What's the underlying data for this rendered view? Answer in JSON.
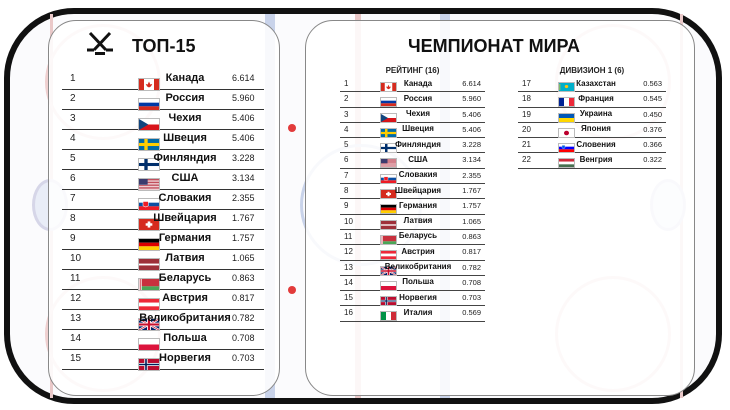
{
  "left": {
    "title": "ТОП-15",
    "rows": [
      {
        "rank": "1",
        "flag": "ca",
        "country": "Канада",
        "score": "6.614"
      },
      {
        "rank": "2",
        "flag": "ru",
        "country": "Россия",
        "score": "5.960"
      },
      {
        "rank": "3",
        "flag": "cz",
        "country": "Чехия",
        "score": "5.406"
      },
      {
        "rank": "4",
        "flag": "se",
        "country": "Швеция",
        "score": "5.406"
      },
      {
        "rank": "5",
        "flag": "fi",
        "country": "Финляндия",
        "score": "3.228"
      },
      {
        "rank": "6",
        "flag": "us",
        "country": "США",
        "score": "3.134"
      },
      {
        "rank": "7",
        "flag": "sk",
        "country": "Словакия",
        "score": "2.355"
      },
      {
        "rank": "8",
        "flag": "ch",
        "country": "Швейцария",
        "score": "1.767"
      },
      {
        "rank": "9",
        "flag": "de",
        "country": "Германия",
        "score": "1.757"
      },
      {
        "rank": "10",
        "flag": "lv",
        "country": "Латвия",
        "score": "1.065"
      },
      {
        "rank": "11",
        "flag": "by",
        "country": "Беларусь",
        "score": "0.863"
      },
      {
        "rank": "12",
        "flag": "at",
        "country": "Австрия",
        "score": "0.817"
      },
      {
        "rank": "13",
        "flag": "gb",
        "country": "Великобритания",
        "score": "0.782"
      },
      {
        "rank": "14",
        "flag": "pl",
        "country": "Польша",
        "score": "0.708"
      },
      {
        "rank": "15",
        "flag": "no",
        "country": "Норвегия",
        "score": "0.703"
      }
    ]
  },
  "right": {
    "title": "ЧЕМПИОНАТ МИРА",
    "rating_title": "РЕЙТИНГ (16)",
    "rating_rows": [
      {
        "rank": "1",
        "flag": "ca",
        "country": "Канада",
        "score": "6.614"
      },
      {
        "rank": "2",
        "flag": "ru",
        "country": "Россия",
        "score": "5.960"
      },
      {
        "rank": "3",
        "flag": "cz",
        "country": "Чехия",
        "score": "5.406"
      },
      {
        "rank": "4",
        "flag": "se",
        "country": "Швеция",
        "score": "5.406"
      },
      {
        "rank": "5",
        "flag": "fi",
        "country": "Финляндия",
        "score": "3.228"
      },
      {
        "rank": "6",
        "flag": "us",
        "country": "США",
        "score": "3.134"
      },
      {
        "rank": "7",
        "flag": "sk",
        "country": "Словакия",
        "score": "2.355"
      },
      {
        "rank": "8",
        "flag": "ch",
        "country": "Швейцария",
        "score": "1.767"
      },
      {
        "rank": "9",
        "flag": "de",
        "country": "Германия",
        "score": "1.757"
      },
      {
        "rank": "10",
        "flag": "lv",
        "country": "Латвия",
        "score": "1.065"
      },
      {
        "rank": "11",
        "flag": "by",
        "country": "Беларусь",
        "score": "0.863"
      },
      {
        "rank": "12",
        "flag": "at",
        "country": "Австрия",
        "score": "0.817"
      },
      {
        "rank": "13",
        "flag": "gb",
        "country": "Великобритания",
        "score": "0.782"
      },
      {
        "rank": "14",
        "flag": "pl",
        "country": "Польша",
        "score": "0.708"
      },
      {
        "rank": "15",
        "flag": "no",
        "country": "Норвегия",
        "score": "0.703"
      },
      {
        "rank": "16",
        "flag": "it",
        "country": "Италия",
        "score": "0.569"
      }
    ],
    "division_title": "ДИВИЗИОН 1 (6)",
    "division_rows": [
      {
        "rank": "17",
        "flag": "kz",
        "country": "Казахстан",
        "score": "0.563"
      },
      {
        "rank": "18",
        "flag": "fr",
        "country": "Франция",
        "score": "0.545"
      },
      {
        "rank": "19",
        "flag": "ua",
        "country": "Украина",
        "score": "0.450"
      },
      {
        "rank": "20",
        "flag": "jp",
        "country": "Япония",
        "score": "0.376"
      },
      {
        "rank": "21",
        "flag": "si",
        "country": "Словения",
        "score": "0.366"
      },
      {
        "rank": "22",
        "flag": "hu",
        "country": "Венгрия",
        "score": "0.322"
      }
    ]
  },
  "icons": {
    "logo": "hockey-sticks-icon"
  }
}
